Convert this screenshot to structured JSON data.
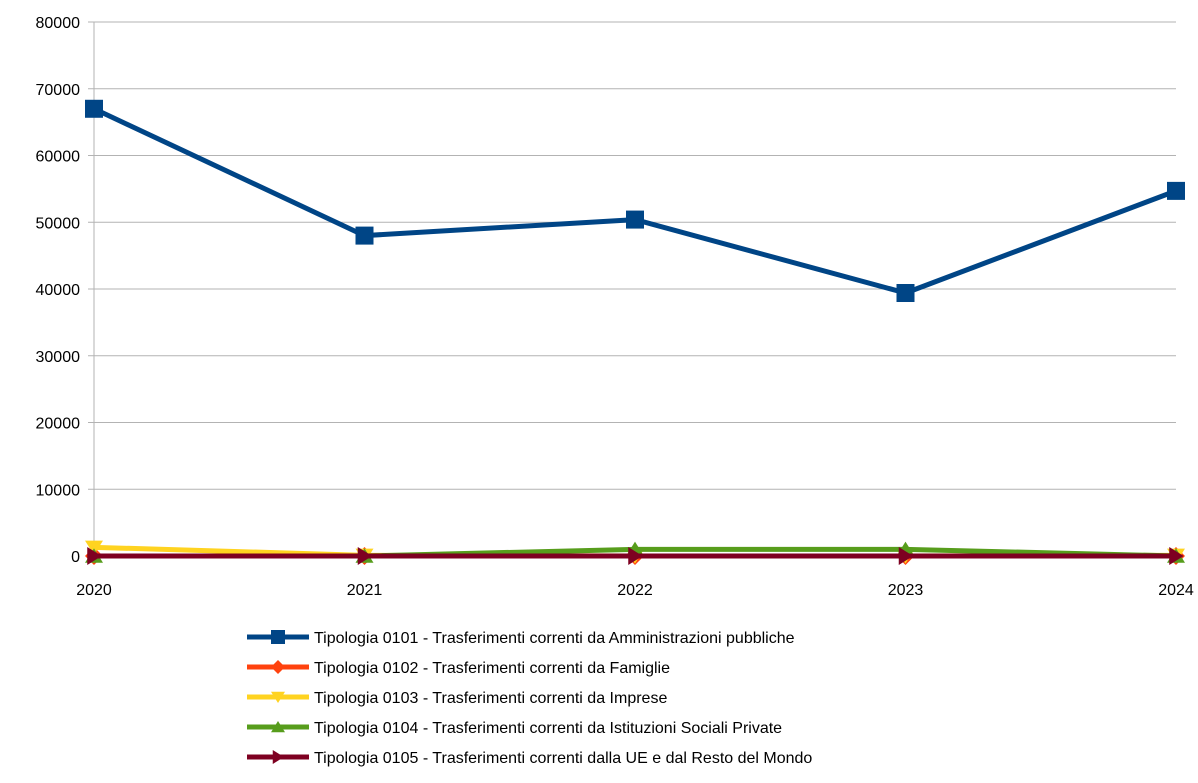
{
  "chart_data": {
    "type": "line",
    "title": "",
    "xlabel": "",
    "ylabel": "",
    "categories": [
      "2020",
      "2021",
      "2022",
      "2023",
      "2024"
    ],
    "ylim": [
      0,
      80000
    ],
    "yticks": [
      0,
      10000,
      20000,
      30000,
      40000,
      50000,
      60000,
      70000,
      80000
    ],
    "grid": "horizontal",
    "legend_position": "bottom",
    "series": [
      {
        "name": "Tipologia 0101 - Trasferimenti correnti da Amministrazioni pubbliche",
        "color": "#004586",
        "marker": "square",
        "values": [
          67000,
          48000,
          50400,
          39400,
          54700
        ]
      },
      {
        "name": "Tipologia 0102 - Trasferimenti correnti da Famiglie",
        "color": "#ff420e",
        "marker": "diamond",
        "values": [
          0,
          0,
          0,
          0,
          0
        ]
      },
      {
        "name": "Tipologia 0103 - Trasferimenti correnti da Imprese",
        "color": "#ffd320",
        "marker": "triangle-down",
        "values": [
          1300,
          100,
          0,
          0,
          100
        ]
      },
      {
        "name": "Tipologia 0104 - Trasferimenti correnti da Istituzioni Sociali Private",
        "color": "#579d1c",
        "marker": "triangle-up",
        "values": [
          0,
          0,
          1000,
          1000,
          0
        ]
      },
      {
        "name": "Tipologia 0105 - Trasferimenti correnti dalla UE e dal Resto del Mondo",
        "color": "#7e0021",
        "marker": "triangle-right",
        "values": [
          0,
          0,
          0,
          0,
          0
        ]
      }
    ]
  }
}
